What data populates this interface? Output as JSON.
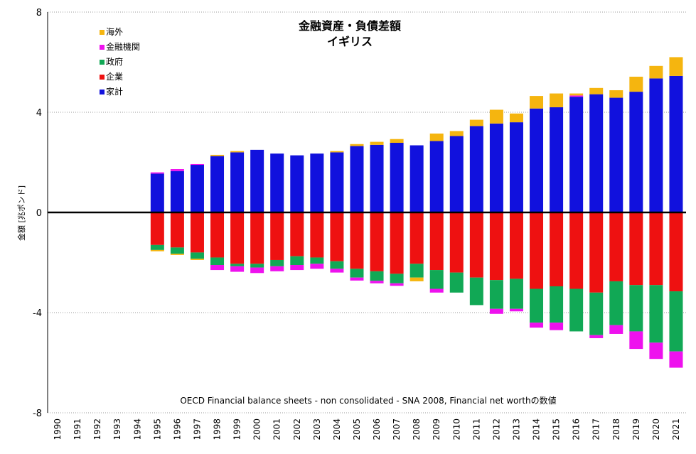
{
  "chart_data": {
    "type": "bar",
    "stacked": true,
    "title": "金融資産・負債差額",
    "subtitle": "イギリス",
    "ylabel": "金額 [兆ポンド]",
    "xlabel": "",
    "ylim": [
      -8,
      8
    ],
    "yticks": [
      -8,
      -4,
      0,
      4,
      8
    ],
    "grid": true,
    "legend_position": "top-left",
    "note": "OECD Financial balance sheets - non consolidated - SNA 2008, Financial net worthの数値",
    "categories": [
      "1990",
      "1991",
      "1992",
      "1993",
      "1994",
      "1995",
      "1996",
      "1997",
      "1998",
      "1999",
      "2000",
      "2001",
      "2002",
      "2003",
      "2004",
      "2005",
      "2006",
      "2007",
      "2008",
      "2009",
      "2010",
      "2011",
      "2012",
      "2013",
      "2014",
      "2015",
      "2016",
      "2017",
      "2018",
      "2019",
      "2020",
      "2021"
    ],
    "series": [
      {
        "name": "家計",
        "color": "#1111dd",
        "values": [
          null,
          null,
          null,
          null,
          null,
          1.55,
          1.65,
          1.9,
          2.25,
          2.4,
          2.5,
          2.35,
          2.28,
          2.35,
          2.4,
          2.65,
          2.7,
          2.78,
          2.68,
          2.85,
          3.05,
          3.45,
          3.55,
          3.6,
          4.15,
          4.2,
          4.62,
          4.72,
          4.58,
          4.82,
          5.35,
          5.45
        ]
      },
      {
        "name": "企業",
        "color": "#ee1111",
        "values": [
          null,
          null,
          null,
          null,
          null,
          -1.3,
          -1.4,
          -1.6,
          -1.8,
          -2.05,
          -2.05,
          -1.9,
          -1.75,
          -1.8,
          -1.95,
          -2.25,
          -2.35,
          -2.45,
          -2.05,
          -2.3,
          -2.4,
          -2.6,
          -2.7,
          -2.65,
          -3.05,
          -2.95,
          -3.05,
          -3.2,
          -2.75,
          -2.9,
          -2.9,
          -3.15
        ]
      },
      {
        "name": "政府",
        "color": "#11a855",
        "values": [
          null,
          null,
          null,
          null,
          null,
          -0.2,
          -0.25,
          -0.25,
          -0.3,
          -0.1,
          -0.15,
          -0.25,
          -0.35,
          -0.25,
          -0.3,
          -0.35,
          -0.38,
          -0.38,
          -0.55,
          -0.75,
          -0.8,
          -1.1,
          -1.15,
          -1.2,
          -1.35,
          -1.45,
          -1.7,
          -1.7,
          -1.75,
          -1.85,
          -2.3,
          -2.4
        ]
      },
      {
        "name": "金融機関",
        "color": "#ee11ee",
        "values": [
          null,
          null,
          null,
          null,
          null,
          0.05,
          0.08,
          0.03,
          -0.2,
          -0.22,
          -0.22,
          -0.2,
          -0.2,
          -0.2,
          -0.15,
          -0.12,
          -0.1,
          -0.1,
          0.0,
          -0.15,
          0.0,
          0.0,
          -0.2,
          -0.1,
          -0.2,
          -0.3,
          0.05,
          -0.12,
          -0.35,
          -0.7,
          -0.65,
          -0.65
        ]
      },
      {
        "name": "海外",
        "color": "#f5b50f",
        "values": [
          null,
          null,
          null,
          null,
          null,
          -0.05,
          -0.05,
          -0.05,
          0.05,
          0.05,
          0.0,
          0.0,
          0.0,
          0.0,
          0.05,
          0.08,
          0.12,
          0.15,
          -0.15,
          0.3,
          0.2,
          0.25,
          0.55,
          0.35,
          0.5,
          0.55,
          0.08,
          0.25,
          0.3,
          0.6,
          0.5,
          0.75
        ]
      }
    ]
  }
}
